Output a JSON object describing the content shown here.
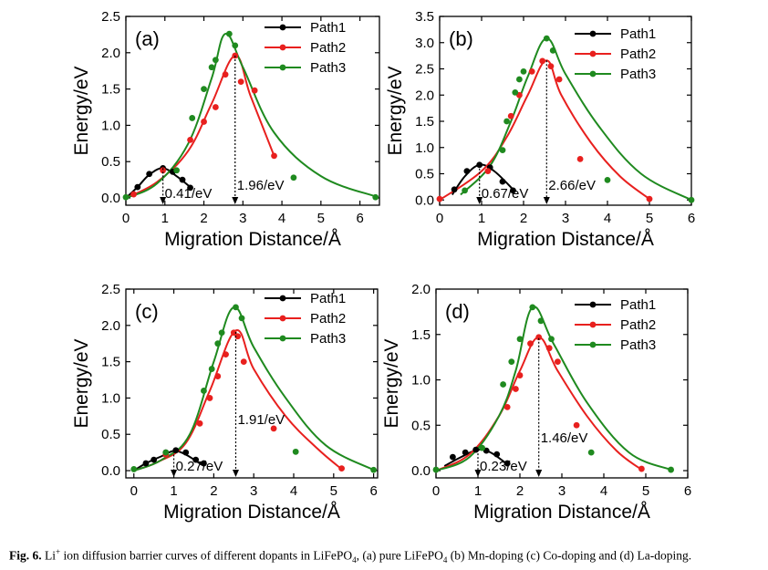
{
  "caption": {
    "fig_label": "Fig. 6.",
    "text_1": "Li",
    "sup": "+",
    "text_2": " ion diffusion barrier curves of different dopants in LiFePO",
    "sub_1": "4",
    "text_3": ", (a) pure LiFePO",
    "sub_2": "4",
    "text_4": " (b) Mn-doping (c) Co-doping and (d) La-doping."
  },
  "colors": {
    "Path1": "#000000",
    "Path2": "#e8201e",
    "Path3": "#1f8a1f"
  },
  "chart_data": [
    {
      "type": "line",
      "panel": "(a)",
      "xlabel": "Migration Distance/Å",
      "ylabel": "Energy/eV",
      "xlim": [
        0,
        6.5
      ],
      "ylim": [
        -0.1,
        2.5
      ],
      "xticks": [
        0,
        1,
        2,
        3,
        4,
        5,
        6
      ],
      "yticks": [
        0.0,
        0.5,
        1.0,
        1.5,
        2.0,
        2.5
      ],
      "ytick_labels": [
        "0.0",
        "0.5",
        "1.0",
        "1.5",
        "2.0",
        "2.5"
      ],
      "legend_position": "top-right",
      "annotations": [
        {
          "text": "0.41/eV",
          "x": 0.95,
          "y": 0.41
        },
        {
          "text": "1.96/eV",
          "x": 2.8,
          "y": 1.96
        }
      ],
      "series": [
        {
          "name": "Path1",
          "line": [
            [
              0,
              0
            ],
            [
              0.3,
              0.15
            ],
            [
              0.6,
              0.32
            ],
            [
              0.95,
              0.41
            ],
            [
              1.3,
              0.3
            ],
            [
              1.65,
              0.15
            ]
          ],
          "points": [
            [
              0.3,
              0.15
            ],
            [
              0.6,
              0.33
            ],
            [
              0.95,
              0.41
            ],
            [
              1.2,
              0.36
            ],
            [
              1.45,
              0.25
            ],
            [
              1.65,
              0.14
            ]
          ]
        },
        {
          "name": "Path2",
          "line": [
            [
              0,
              0
            ],
            [
              0.8,
              0.22
            ],
            [
              1.6,
              0.65
            ],
            [
              2.2,
              1.3
            ],
            [
              2.8,
              1.96
            ],
            [
              3.2,
              1.4
            ],
            [
              3.8,
              0.58
            ]
          ],
          "points": [
            [
              0.2,
              0.05
            ],
            [
              0.95,
              0.38
            ],
            [
              1.65,
              0.8
            ],
            [
              2.0,
              1.05
            ],
            [
              2.3,
              1.25
            ],
            [
              2.55,
              1.7
            ],
            [
              2.8,
              1.96
            ],
            [
              2.95,
              1.6
            ],
            [
              3.3,
              1.48
            ],
            [
              3.8,
              0.58
            ]
          ]
        },
        {
          "name": "Path3",
          "line": [
            [
              0,
              0
            ],
            [
              0.8,
              0.2
            ],
            [
              1.6,
              0.75
            ],
            [
              2.2,
              1.65
            ],
            [
              2.55,
              2.26
            ],
            [
              3.0,
              1.8
            ],
            [
              3.8,
              0.9
            ],
            [
              5.0,
              0.3
            ],
            [
              6.4,
              0.02
            ]
          ],
          "points": [
            [
              0,
              0.01
            ],
            [
              1.3,
              0.38
            ],
            [
              1.7,
              1.1
            ],
            [
              2.0,
              1.5
            ],
            [
              2.2,
              1.8
            ],
            [
              2.3,
              1.9
            ],
            [
              2.65,
              2.26
            ],
            [
              2.8,
              2.1
            ],
            [
              4.3,
              0.28
            ],
            [
              6.4,
              0.01
            ]
          ]
        }
      ]
    },
    {
      "type": "line",
      "panel": "(b)",
      "xlabel": "Migration Distance/Å",
      "ylabel": "Energy/eV",
      "xlim": [
        0,
        6
      ],
      "ylim": [
        -0.1,
        3.5
      ],
      "xticks": [
        0,
        1,
        2,
        3,
        4,
        5,
        6
      ],
      "yticks": [
        0.0,
        0.5,
        1.0,
        1.5,
        2.0,
        2.5,
        3.0,
        3.5
      ],
      "ytick_labels": [
        "0.0",
        "0.5",
        "1.0",
        "1.5",
        "2.0",
        "2.5",
        "3.0",
        "3.5"
      ],
      "legend_position": "top-right",
      "annotations": [
        {
          "text": "0.67/eV",
          "x": 0.95,
          "y": 0.67
        },
        {
          "text": "2.66/eV",
          "x": 2.55,
          "y": 2.66
        }
      ],
      "series": [
        {
          "name": "Path1",
          "line": [
            [
              0.3,
              0.1
            ],
            [
              0.6,
              0.45
            ],
            [
              0.95,
              0.67
            ],
            [
              1.3,
              0.55
            ],
            [
              1.75,
              0.2
            ]
          ],
          "points": [
            [
              0.35,
              0.2
            ],
            [
              0.65,
              0.55
            ],
            [
              0.95,
              0.67
            ],
            [
              1.2,
              0.62
            ],
            [
              1.5,
              0.35
            ],
            [
              1.75,
              0.18
            ]
          ]
        },
        {
          "name": "Path2",
          "line": [
            [
              0,
              0
            ],
            [
              1.0,
              0.55
            ],
            [
              1.6,
              1.2
            ],
            [
              2.1,
              2.0
            ],
            [
              2.55,
              2.66
            ],
            [
              2.9,
              2.0
            ],
            [
              3.6,
              1.1
            ],
            [
              4.3,
              0.45
            ],
            [
              5.0,
              0.02
            ]
          ],
          "points": [
            [
              0,
              0.02
            ],
            [
              1.15,
              0.55
            ],
            [
              1.7,
              1.6
            ],
            [
              1.9,
              2.0
            ],
            [
              2.2,
              2.45
            ],
            [
              2.45,
              2.65
            ],
            [
              2.65,
              2.55
            ],
            [
              2.85,
              2.3
            ],
            [
              3.35,
              0.78
            ],
            [
              5.0,
              0.02
            ]
          ]
        },
        {
          "name": "Path3",
          "line": [
            [
              0.5,
              0.1
            ],
            [
              1.2,
              0.65
            ],
            [
              1.7,
              1.5
            ],
            [
              2.1,
              2.35
            ],
            [
              2.55,
              3.08
            ],
            [
              3.0,
              2.4
            ],
            [
              3.8,
              1.4
            ],
            [
              4.8,
              0.5
            ],
            [
              6.0,
              0.0
            ]
          ],
          "points": [
            [
              0.6,
              0.18
            ],
            [
              1.5,
              0.95
            ],
            [
              1.6,
              1.5
            ],
            [
              1.8,
              2.05
            ],
            [
              1.9,
              2.3
            ],
            [
              2.0,
              2.45
            ],
            [
              2.55,
              3.08
            ],
            [
              2.7,
              2.85
            ],
            [
              4.0,
              0.38
            ],
            [
              6.0,
              0.0
            ]
          ]
        }
      ]
    },
    {
      "type": "line",
      "panel": "(c)",
      "xlabel": "Migration Distance/Å",
      "ylabel": "Energy/eV",
      "xlim": [
        -0.2,
        6.1
      ],
      "ylim": [
        -0.1,
        2.5
      ],
      "xticks": [
        0,
        1,
        2,
        3,
        4,
        5,
        6
      ],
      "yticks": [
        0.0,
        0.5,
        1.0,
        1.5,
        2.0,
        2.5
      ],
      "ytick_labels": [
        "0.0",
        "0.5",
        "1.0",
        "1.5",
        "2.0",
        "2.5"
      ],
      "legend_position": "top-right",
      "annotations": [
        {
          "text": "0.27/eV",
          "x": 1.0,
          "y": 0.27
        },
        {
          "text": "1.91/eV",
          "x": 2.55,
          "y": 1.91
        }
      ],
      "series": [
        {
          "name": "Path1",
          "line": [
            [
              0,
              0
            ],
            [
              0.3,
              0.1
            ],
            [
              0.7,
              0.2
            ],
            [
              1.0,
              0.27
            ],
            [
              1.3,
              0.22
            ],
            [
              1.7,
              0.08
            ]
          ],
          "points": [
            [
              0.3,
              0.1
            ],
            [
              0.5,
              0.15
            ],
            [
              0.8,
              0.25
            ],
            [
              1.05,
              0.28
            ],
            [
              1.3,
              0.25
            ],
            [
              1.55,
              0.15
            ],
            [
              1.75,
              0.1
            ]
          ]
        },
        {
          "name": "Path2",
          "line": [
            [
              0,
              0
            ],
            [
              0.6,
              0.12
            ],
            [
              1.3,
              0.38
            ],
            [
              1.9,
              1.1
            ],
            [
              2.55,
              1.93
            ],
            [
              3.0,
              1.4
            ],
            [
              3.8,
              0.75
            ],
            [
              4.6,
              0.3
            ],
            [
              5.2,
              0.02
            ]
          ],
          "points": [
            [
              0.8,
              0.22
            ],
            [
              1.65,
              0.65
            ],
            [
              1.9,
              1.0
            ],
            [
              2.1,
              1.3
            ],
            [
              2.3,
              1.6
            ],
            [
              2.5,
              1.9
            ],
            [
              2.6,
              1.85
            ],
            [
              2.75,
              1.5
            ],
            [
              3.5,
              0.58
            ],
            [
              5.2,
              0.03
            ]
          ]
        },
        {
          "name": "Path3",
          "line": [
            [
              0,
              0
            ],
            [
              0.7,
              0.15
            ],
            [
              1.4,
              0.5
            ],
            [
              2.0,
              1.5
            ],
            [
              2.5,
              2.25
            ],
            [
              3.0,
              1.7
            ],
            [
              3.8,
              1.0
            ],
            [
              4.8,
              0.35
            ],
            [
              6.0,
              0.01
            ]
          ],
          "points": [
            [
              0,
              0.02
            ],
            [
              0.8,
              0.25
            ],
            [
              1.75,
              1.1
            ],
            [
              1.95,
              1.4
            ],
            [
              2.1,
              1.75
            ],
            [
              2.2,
              1.9
            ],
            [
              2.55,
              2.25
            ],
            [
              2.7,
              2.1
            ],
            [
              4.05,
              0.26
            ],
            [
              6.0,
              0.01
            ]
          ]
        }
      ]
    },
    {
      "type": "line",
      "panel": "(d)",
      "xlabel": "Migration Distance/Å",
      "ylabel": "Energy/eV",
      "xlim": [
        0,
        6
      ],
      "ylim": [
        -0.08,
        2.0
      ],
      "xticks": [
        0,
        1,
        2,
        3,
        4,
        5,
        6
      ],
      "yticks": [
        0.0,
        0.5,
        1.0,
        1.5,
        2.0
      ],
      "ytick_labels": [
        "0.0",
        "0.5",
        "1.0",
        "1.5",
        "2.0"
      ],
      "legend_position": "top-right",
      "annotations": [
        {
          "text": "0.23/eV",
          "x": 1.0,
          "y": 0.23
        },
        {
          "text": "1.46/eV",
          "x": 2.45,
          "y": 1.46
        }
      ],
      "series": [
        {
          "name": "Path1",
          "line": [
            [
              0.2,
              0.05
            ],
            [
              0.6,
              0.15
            ],
            [
              1.0,
              0.23
            ],
            [
              1.3,
              0.2
            ],
            [
              1.7,
              0.07
            ]
          ],
          "points": [
            [
              0.4,
              0.15
            ],
            [
              0.7,
              0.2
            ],
            [
              0.95,
              0.23
            ],
            [
              1.2,
              0.22
            ],
            [
              1.45,
              0.18
            ],
            [
              1.7,
              0.08
            ]
          ]
        },
        {
          "name": "Path2",
          "line": [
            [
              0,
              0
            ],
            [
              0.8,
              0.18
            ],
            [
              1.5,
              0.6
            ],
            [
              2.0,
              1.1
            ],
            [
              2.45,
              1.47
            ],
            [
              2.9,
              1.1
            ],
            [
              3.6,
              0.6
            ],
            [
              4.3,
              0.22
            ],
            [
              4.9,
              0.01
            ]
          ],
          "points": [
            [
              1.7,
              0.7
            ],
            [
              1.9,
              0.9
            ],
            [
              2.0,
              1.05
            ],
            [
              2.25,
              1.4
            ],
            [
              2.45,
              1.47
            ],
            [
              2.7,
              1.35
            ],
            [
              2.9,
              1.2
            ],
            [
              3.35,
              0.5
            ],
            [
              4.9,
              0.02
            ]
          ]
        },
        {
          "name": "Path3",
          "line": [
            [
              0,
              0
            ],
            [
              0.8,
              0.15
            ],
            [
              1.5,
              0.6
            ],
            [
              1.9,
              1.1
            ],
            [
              2.3,
              1.8
            ],
            [
              2.8,
              1.4
            ],
            [
              3.6,
              0.75
            ],
            [
              4.6,
              0.2
            ],
            [
              5.6,
              0.01
            ]
          ],
          "points": [
            [
              0,
              0.01
            ],
            [
              1.1,
              0.25
            ],
            [
              1.6,
              0.95
            ],
            [
              1.8,
              1.2
            ],
            [
              2.0,
              1.45
            ],
            [
              2.3,
              1.8
            ],
            [
              2.5,
              1.65
            ],
            [
              2.75,
              1.45
            ],
            [
              3.7,
              0.2
            ],
            [
              5.6,
              0.01
            ]
          ]
        }
      ]
    }
  ]
}
